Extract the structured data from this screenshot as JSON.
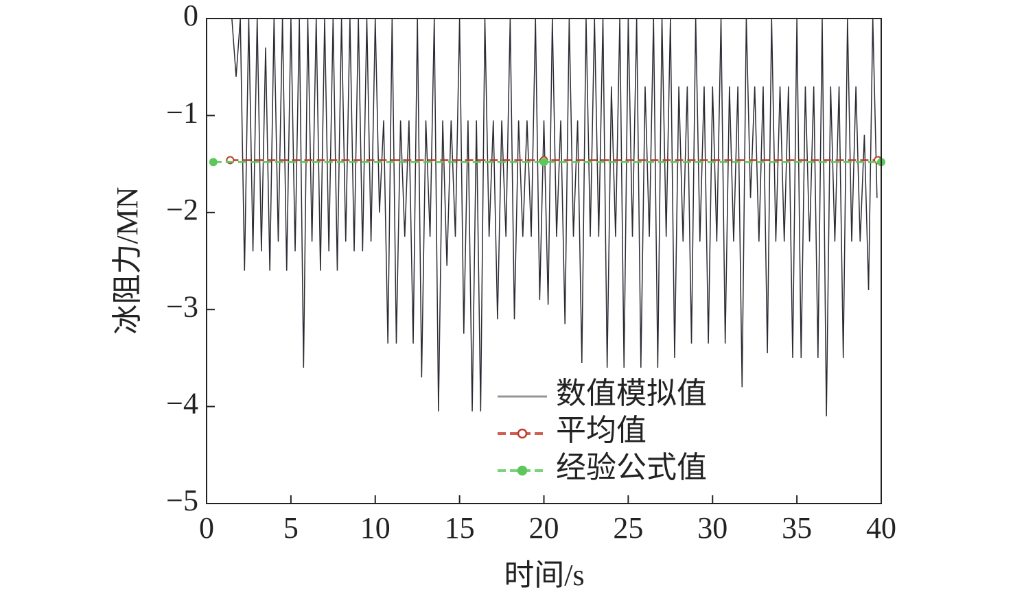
{
  "chart_data": {
    "type": "line",
    "xlabel": "时间/s",
    "ylabel": "冰阻力/MN",
    "xlim": [
      0,
      40
    ],
    "xticks": [
      0,
      5,
      10,
      15,
      20,
      25,
      30,
      35,
      40
    ],
    "ylim": [
      -5,
      0
    ],
    "yticks": [
      {
        "value": 0,
        "label": "0"
      },
      {
        "value": -1,
        "label": "−1"
      },
      {
        "value": -2,
        "label": "−2"
      },
      {
        "value": -3,
        "label": "−3"
      },
      {
        "value": -4,
        "label": "−4"
      },
      {
        "value": -5,
        "label": "−5"
      }
    ],
    "legend": "lower right",
    "series": [
      {
        "name": "数值模拟值",
        "color": "#2b2b33",
        "style": "solid",
        "marker": "none",
        "x": [
          1.5,
          1.75,
          2,
          2.25,
          2.5,
          2.75,
          3,
          3.25,
          3.5,
          3.75,
          4,
          4.25,
          4.5,
          4.75,
          5,
          5.25,
          5.5,
          5.75,
          6,
          6.25,
          6.5,
          6.75,
          7,
          7.25,
          7.5,
          7.75,
          8,
          8.25,
          8.5,
          8.75,
          9,
          9.25,
          9.5,
          9.75,
          10,
          10.25,
          10.5,
          10.75,
          11,
          11.25,
          11.5,
          11.75,
          12,
          12.25,
          12.5,
          12.75,
          13,
          13.25,
          13.5,
          13.75,
          14,
          14.25,
          14.5,
          14.75,
          15,
          15.25,
          15.5,
          15.75,
          16,
          16.25,
          16.5,
          16.75,
          17,
          17.25,
          17.5,
          17.75,
          18,
          18.25,
          18.5,
          18.75,
          19,
          19.25,
          19.5,
          19.75,
          20,
          20.25,
          20.5,
          20.75,
          21,
          21.25,
          21.5,
          21.75,
          22,
          22.25,
          22.5,
          22.75,
          23,
          23.25,
          23.5,
          23.75,
          24,
          24.25,
          24.5,
          24.75,
          25,
          25.25,
          25.5,
          25.75,
          26,
          26.25,
          26.5,
          26.75,
          27,
          27.25,
          27.5,
          27.75,
          28,
          28.25,
          28.5,
          28.75,
          29,
          29.25,
          29.5,
          29.75,
          30,
          30.25,
          30.5,
          30.75,
          31,
          31.25,
          31.5,
          31.75,
          32,
          32.25,
          32.5,
          32.75,
          33,
          33.25,
          33.5,
          33.75,
          34,
          34.25,
          34.5,
          34.75,
          35,
          35.25,
          35.5,
          35.75,
          36,
          36.25,
          36.5,
          36.75,
          37,
          37.25,
          37.5,
          37.75,
          38,
          38.25,
          38.5,
          38.75,
          39,
          39.25,
          39.5,
          39.75
        ],
        "values": [
          0,
          -0.6,
          0,
          -2.6,
          0,
          -2.4,
          0,
          -2.4,
          -0.3,
          -2.6,
          0,
          -2.3,
          0,
          -2.6,
          0,
          -2.4,
          0,
          -3.6,
          0,
          -2.3,
          0,
          -2.6,
          0,
          -2.4,
          0,
          -2.6,
          0,
          -2.3,
          0,
          -2.4,
          0,
          -2.4,
          0,
          -2.3,
          0,
          -2.0,
          -1.05,
          -3.35,
          0,
          -3.35,
          -1.05,
          -2.25,
          -1.05,
          -3.35,
          0,
          -3.7,
          -1.05,
          -2.25,
          0,
          -4.05,
          -1.05,
          -2.55,
          -1.05,
          -2.25,
          0,
          -3.25,
          -1.05,
          -4.05,
          -1.05,
          -4.05,
          0,
          -2.25,
          -1.05,
          -3.1,
          -1.05,
          -2.25,
          0,
          -3.1,
          -1.05,
          -2.25,
          -1.05,
          -2.25,
          0,
          -2.9,
          -1.05,
          -2.95,
          0,
          -2.25,
          -1.05,
          -3.15,
          0,
          -2.25,
          -1.05,
          -3.55,
          0,
          -2.25,
          0,
          -2.25,
          0,
          -3.6,
          -0.7,
          -2.25,
          0,
          -3.6,
          0,
          -2.25,
          0,
          -3.6,
          -0.7,
          -2.25,
          0,
          -3.6,
          0,
          -2.25,
          0,
          -3.5,
          -0.7,
          -2.3,
          -0.7,
          -3.35,
          0,
          -2.3,
          -0.7,
          -3.35,
          -0.7,
          -2.3,
          0,
          -3.35,
          -0.7,
          -2.3,
          -0.7,
          -3.8,
          0,
          -1.85,
          -0.7,
          -2.3,
          -0.7,
          -3.45,
          0,
          -2.3,
          -0.7,
          -2.3,
          -0.7,
          -3.5,
          0,
          -3.5,
          -0.7,
          -2.3,
          -0.7,
          -3.5,
          0,
          -4.1,
          -0.7,
          -2.3,
          -0.7,
          -3.5,
          0,
          -2.3,
          -0.7,
          -2.3,
          -1.2,
          -2.8,
          0,
          -1.85
        ]
      },
      {
        "name": "平均值",
        "color": "#c0392b",
        "style": "dashed",
        "marker": "circle",
        "x": [
          1.4,
          20,
          39.8
        ],
        "values": [
          -1.46,
          -1.46,
          -1.46
        ]
      },
      {
        "name": "经验公式值",
        "color": "#5cc85c",
        "style": "dashed",
        "marker": "filled",
        "x": [
          0.4,
          20,
          40
        ],
        "values": [
          -1.48,
          -1.48,
          -1.48
        ]
      }
    ]
  }
}
